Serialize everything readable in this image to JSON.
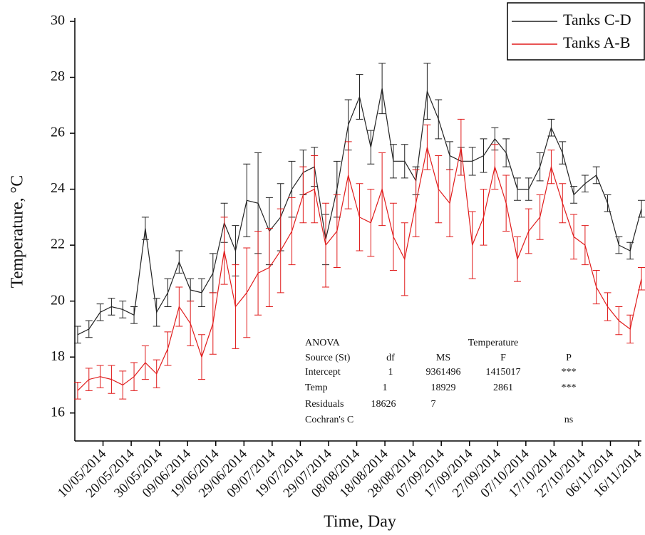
{
  "chart_data": {
    "type": "line",
    "x_label": "Time, Day",
    "y_label": "Temperature, °C",
    "x": [
      "2014-05-01",
      "2014-05-05",
      "2014-05-09",
      "2014-05-13",
      "2014-05-17",
      "2014-05-21",
      "2014-05-25",
      "2014-05-29",
      "2014-06-02",
      "2014-06-06",
      "2014-06-10",
      "2014-06-14",
      "2014-06-18",
      "2014-06-22",
      "2014-06-26",
      "2014-06-30",
      "2014-07-04",
      "2014-07-08",
      "2014-07-12",
      "2014-07-16",
      "2014-07-20",
      "2014-07-24",
      "2014-07-28",
      "2014-08-01",
      "2014-08-05",
      "2014-08-09",
      "2014-08-13",
      "2014-08-17",
      "2014-08-21",
      "2014-08-25",
      "2014-08-29",
      "2014-09-02",
      "2014-09-06",
      "2014-09-10",
      "2014-09-14",
      "2014-09-18",
      "2014-09-22",
      "2014-09-26",
      "2014-09-30",
      "2014-10-04",
      "2014-10-08",
      "2014-10-12",
      "2014-10-16",
      "2014-10-20",
      "2014-10-24",
      "2014-10-28",
      "2014-11-01",
      "2014-11-05",
      "2014-11-09",
      "2014-11-13",
      "2014-11-17"
    ],
    "series": [
      {
        "name": "Tanks C-D",
        "color": "#222222",
        "values": [
          18.8,
          19.0,
          19.6,
          19.8,
          19.7,
          19.5,
          22.6,
          19.6,
          20.3,
          21.4,
          20.4,
          20.3,
          21.0,
          22.8,
          21.8,
          23.6,
          23.5,
          22.5,
          23.0,
          24.0,
          24.6,
          24.8,
          22.2,
          24.0,
          26.3,
          27.3,
          25.5,
          27.6,
          25.0,
          25.0,
          24.3,
          27.5,
          26.5,
          25.2,
          25.0,
          25.0,
          25.2,
          25.8,
          25.3,
          24.0,
          24.0,
          24.8,
          26.2,
          25.3,
          23.8,
          24.2,
          24.5,
          23.5,
          22.0,
          21.8,
          23.3
        ],
        "errors": [
          0.3,
          0.3,
          0.3,
          0.3,
          0.3,
          0.3,
          0.4,
          0.5,
          0.5,
          0.4,
          0.4,
          0.5,
          0.7,
          0.7,
          0.9,
          1.3,
          1.8,
          1.2,
          1.2,
          1.0,
          0.8,
          0.7,
          0.9,
          1.0,
          0.9,
          0.8,
          0.6,
          0.9,
          0.6,
          0.6,
          0.5,
          1.0,
          0.7,
          0.5,
          0.5,
          0.5,
          0.6,
          0.4,
          0.5,
          0.4,
          0.4,
          0.5,
          0.3,
          0.4,
          0.3,
          0.3,
          0.3,
          0.3,
          0.3,
          0.3,
          0.3
        ]
      },
      {
        "name": "Tanks A-B",
        "color": "#e01b1b",
        "values": [
          16.8,
          17.2,
          17.3,
          17.2,
          17.0,
          17.3,
          17.8,
          17.4,
          18.3,
          19.8,
          19.2,
          18.0,
          19.2,
          21.8,
          19.8,
          20.3,
          21.0,
          21.2,
          21.8,
          22.5,
          23.8,
          24.0,
          22.0,
          22.5,
          24.5,
          23.0,
          22.8,
          24.0,
          22.3,
          21.5,
          23.5,
          25.5,
          24.0,
          23.5,
          25.5,
          22.0,
          23.0,
          24.8,
          23.5,
          21.5,
          22.5,
          23.0,
          24.8,
          23.5,
          22.3,
          22.0,
          20.5,
          19.8,
          19.3,
          19.0,
          20.8
        ],
        "errors": [
          0.3,
          0.4,
          0.4,
          0.5,
          0.5,
          0.5,
          0.6,
          0.5,
          0.6,
          0.7,
          0.8,
          0.8,
          1.1,
          1.2,
          1.5,
          1.6,
          1.5,
          1.4,
          1.5,
          1.2,
          1.0,
          1.2,
          1.5,
          1.3,
          1.2,
          1.2,
          1.2,
          1.3,
          1.2,
          1.3,
          1.2,
          0.8,
          1.2,
          1.2,
          1.0,
          1.2,
          1.0,
          0.8,
          1.0,
          0.8,
          0.8,
          0.8,
          0.6,
          0.7,
          0.8,
          0.7,
          0.6,
          0.5,
          0.5,
          0.5,
          0.4
        ]
      }
    ],
    "xlim": [
      "2014-04-30",
      "2014-11-17"
    ],
    "xticks": [
      {
        "value": "2014-05-10",
        "label": "10/05/2014"
      },
      {
        "value": "2014-05-20",
        "label": "20/05/2014"
      },
      {
        "value": "2014-05-30",
        "label": "30/05/2014"
      },
      {
        "value": "2014-06-09",
        "label": "09/06/2014"
      },
      {
        "value": "2014-06-19",
        "label": "19/06/2014"
      },
      {
        "value": "2014-06-29",
        "label": "29/06/2014"
      },
      {
        "value": "2014-07-09",
        "label": "09/07/2014"
      },
      {
        "value": "2014-07-19",
        "label": "19/07/2014"
      },
      {
        "value": "2014-07-29",
        "label": "29/07/2014"
      },
      {
        "value": "2014-08-08",
        "label": "08/08/2014"
      },
      {
        "value": "2014-08-18",
        "label": "18/08/2014"
      },
      {
        "value": "2014-08-28",
        "label": "28/08/2014"
      },
      {
        "value": "2014-09-07",
        "label": "07/09/2014"
      },
      {
        "value": "2014-09-17",
        "label": "17/09/2014"
      },
      {
        "value": "2014-09-27",
        "label": "27/09/2014"
      },
      {
        "value": "2014-10-07",
        "label": "07/10/2014"
      },
      {
        "value": "2014-10-17",
        "label": "17/10/2014"
      },
      {
        "value": "2014-10-27",
        "label": "27/10/2014"
      },
      {
        "value": "2014-11-06",
        "label": "06/11/2014"
      },
      {
        "value": "2014-11-16",
        "label": "16/11/2014"
      }
    ],
    "ylim": [
      15,
      30
    ],
    "yticks": [
      16,
      18,
      20,
      22,
      24,
      26,
      28,
      30
    ],
    "legend": "upper right",
    "anova": {
      "title": "ANOVA",
      "group": "Temperature",
      "header": [
        "Source (St)",
        "df",
        "MS",
        "F",
        "P"
      ],
      "rows": [
        [
          "Intercept",
          1,
          9361496,
          1415017,
          "***"
        ],
        [
          "Temp",
          1,
          18929,
          2861,
          "***"
        ],
        [
          "Residuals",
          18626,
          7,
          null,
          null
        ],
        [
          "Cochran's C",
          null,
          null,
          null,
          "ns"
        ]
      ]
    }
  }
}
